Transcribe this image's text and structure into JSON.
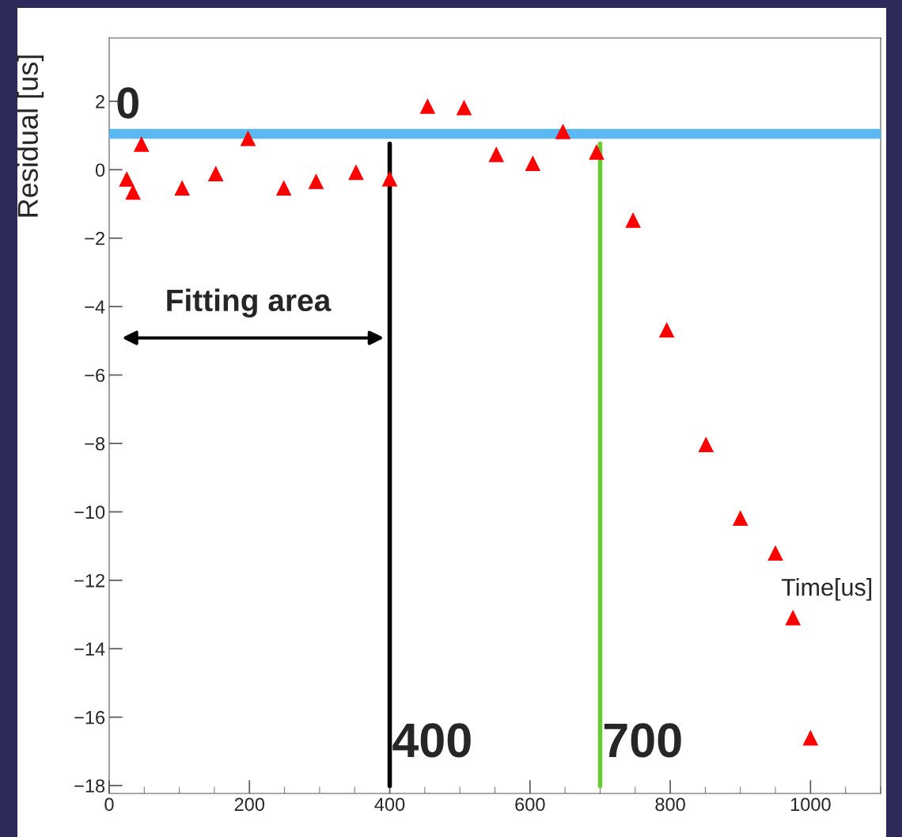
{
  "chart_data": {
    "type": "scatter",
    "xlabel": "Time[us]",
    "ylabel": "Residual [us]",
    "x": [
      25,
      34,
      46,
      104,
      152,
      198,
      249,
      295,
      352,
      400,
      454,
      506,
      552,
      604,
      647,
      695,
      747,
      795,
      851,
      900,
      950,
      975,
      1000
    ],
    "series": [
      {
        "color": "#ff0000",
        "values": [
          -0.27,
          -0.65,
          0.75,
          -0.53,
          -0.11,
          0.92,
          -0.53,
          -0.34,
          -0.07,
          -0.26,
          1.86,
          1.82,
          0.45,
          0.19,
          1.12,
          0.52,
          -1.47,
          -4.68,
          -8.03,
          -10.18,
          -11.2,
          -13.09,
          -16.6
        ]
      }
    ],
    "marker": "triangle",
    "xlim": [
      0,
      1100
    ],
    "ylim": [
      -18.23,
      3.85
    ],
    "xticks": [
      0,
      200,
      400,
      600,
      800,
      1000
    ],
    "yticks": [
      {
        "value": -18,
        "label": "−18"
      },
      {
        "value": -16,
        "label": "−16"
      },
      {
        "value": -14,
        "label": "−14"
      },
      {
        "value": -12,
        "label": "−12"
      },
      {
        "value": -10,
        "label": "−10"
      },
      {
        "value": -8,
        "label": "−8"
      },
      {
        "value": -6,
        "label": "−6"
      },
      {
        "value": -4,
        "label": "−4"
      },
      {
        "value": -2,
        "label": "−2"
      },
      0,
      2
    ],
    "ref_lines": [
      {
        "axis": "y",
        "value": 1.05,
        "color": "#5bb8f0"
      },
      {
        "axis": "x",
        "value": 400,
        "label": "400",
        "color": "#000000"
      },
      {
        "axis": "x",
        "value": 700,
        "label": "700",
        "color": "#66cc33"
      }
    ],
    "annotations": [
      "0",
      "Fitting area"
    ],
    "grid": false
  }
}
